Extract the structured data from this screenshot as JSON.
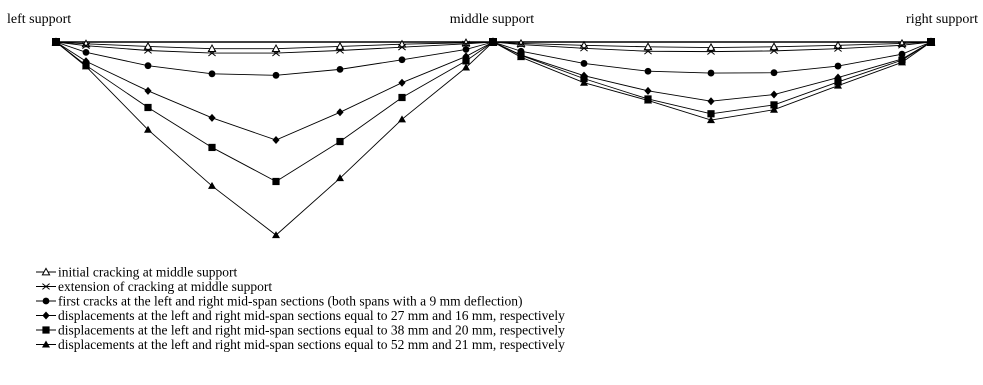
{
  "chart_data": {
    "type": "line",
    "supports": {
      "left": "left support",
      "middle": "middle support",
      "right": "right support"
    },
    "x": [
      0,
      1,
      2,
      3,
      4,
      5,
      6,
      7,
      8
    ],
    "spans": [
      "left",
      "right"
    ],
    "series": [
      {
        "name": "initial cracking at middle support",
        "marker": "open-triangle",
        "left": [
          0,
          0.5,
          1.2,
          1.8,
          1.8,
          1.2,
          0.6,
          0.2,
          0
        ],
        "right": [
          0,
          0.4,
          0.9,
          1.3,
          1.5,
          1.3,
          0.9,
          0.4,
          0
        ]
      },
      {
        "name": "extension of cracking at middle support",
        "marker": "x",
        "left": [
          0,
          1.0,
          2.3,
          3.0,
          3.0,
          2.3,
          1.4,
          0.5,
          0
        ],
        "right": [
          0,
          0.7,
          1.7,
          2.5,
          2.6,
          2.4,
          1.8,
          0.9,
          0
        ]
      },
      {
        "name": "first cracks at the left and right mid-span sections (both spans with a 9 mm deflection)",
        "marker": "filled-circle",
        "left": [
          0,
          2.8,
          6.4,
          8.6,
          9.0,
          7.4,
          4.8,
          2.0,
          0
        ],
        "right": [
          0,
          2.5,
          5.8,
          7.9,
          8.4,
          8.3,
          6.5,
          3.3,
          0
        ]
      },
      {
        "name": "displacements at the left and right mid-span sections equal to 27 mm and 16 mm, respectively",
        "marker": "filled-diamond",
        "left": [
          0,
          5.2,
          13.2,
          20.5,
          26.5,
          19.0,
          11.0,
          3.9,
          0
        ],
        "right": [
          0,
          3.5,
          9.1,
          13.2,
          16.0,
          14.2,
          9.6,
          4.6,
          0
        ]
      },
      {
        "name": "displacements at the left and right mid-span sections equal to 38 mm and 20 mm, respectively",
        "marker": "filled-square",
        "left": [
          0,
          6.3,
          17.7,
          28.5,
          37.7,
          26.9,
          15.0,
          5.1,
          0
        ],
        "right": [
          0,
          3.6,
          9.9,
          15.4,
          19.4,
          17.0,
          10.8,
          4.9,
          0
        ]
      },
      {
        "name": "displacements at the left and right mid-span sections equal to 52 mm and 21 mm, respectively",
        "marker": "filled-triangle",
        "left": [
          0,
          6.6,
          23.7,
          38.9,
          52.2,
          36.8,
          20.9,
          6.9,
          0
        ],
        "right": [
          0,
          4.1,
          11.0,
          15.8,
          21.1,
          18.3,
          11.8,
          5.5,
          0
        ]
      }
    ],
    "yrange_mm": [
      0,
      52.2
    ],
    "grid": false,
    "legend_position": "bottom-left"
  }
}
